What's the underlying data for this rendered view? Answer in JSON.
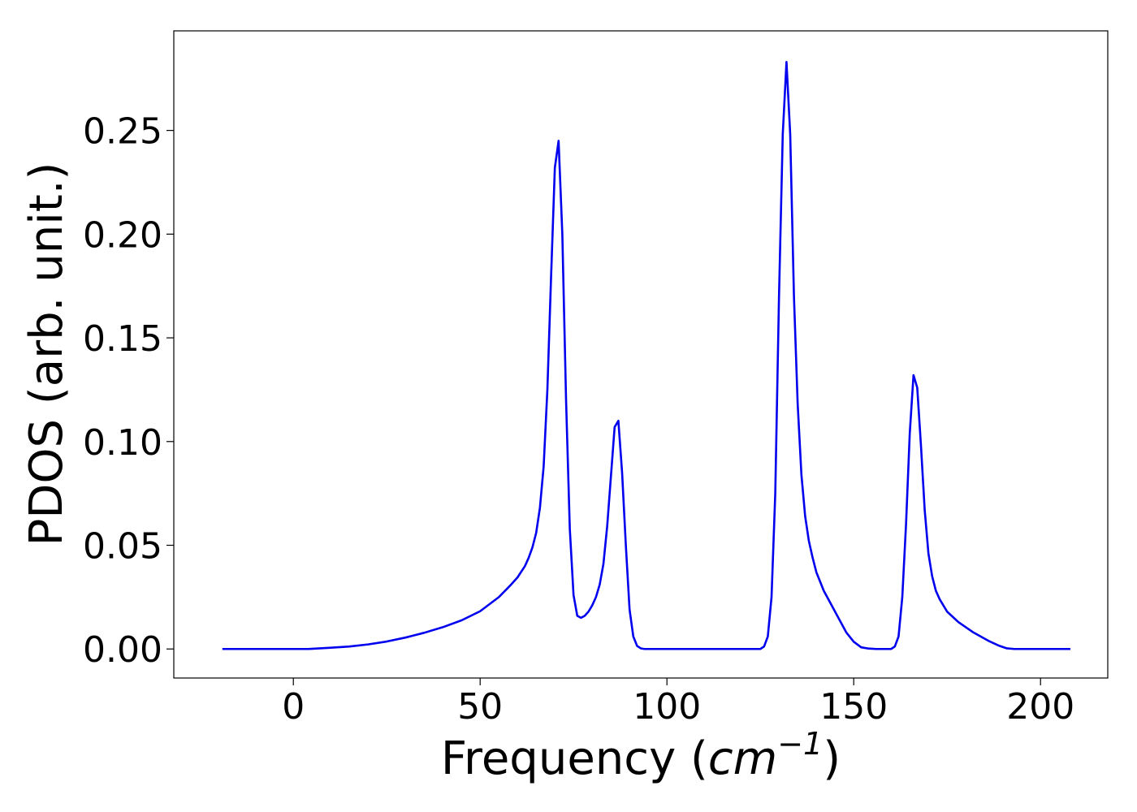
{
  "chart_data": {
    "type": "line",
    "title": "",
    "xlabel_main": "Frequency (",
    "xlabel_unit": "cm",
    "xlabel_exp": "−1",
    "xlabel_close": ")",
    "ylabel": "PDOS (arb. unit.)",
    "xlim": [
      -32,
      218
    ],
    "ylim": [
      -0.014,
      0.298
    ],
    "x_ticks": [
      0,
      50,
      100,
      150,
      200
    ],
    "x_tick_labels": [
      "0",
      "50",
      "100",
      "150",
      "200"
    ],
    "y_ticks": [
      0,
      0.05,
      0.1,
      0.15,
      0.2,
      0.25
    ],
    "y_tick_labels": [
      "0.00",
      "0.05",
      "0.10",
      "0.15",
      "0.20",
      "0.25"
    ],
    "grid": false,
    "legend": "none",
    "series": [
      {
        "color": "#0000ee",
        "x": [
          -19,
          0,
          4,
          10,
          15,
          20,
          25,
          30,
          35,
          40,
          45,
          50,
          55,
          58,
          60,
          62,
          63,
          64,
          65,
          66,
          67,
          68,
          69,
          70,
          71,
          72,
          73,
          74,
          75,
          76,
          77,
          78,
          79,
          80,
          81,
          82,
          83,
          84,
          85,
          86,
          87,
          88,
          89,
          90,
          91,
          92,
          93,
          94,
          95,
          96,
          100,
          110,
          120,
          125,
          126,
          127,
          128,
          129,
          130,
          131,
          132,
          133,
          134,
          135,
          136,
          137,
          138,
          139,
          140,
          142,
          145,
          148,
          150,
          152,
          154,
          156,
          158,
          160,
          161,
          162,
          163,
          164,
          165,
          166,
          167,
          168,
          169,
          170,
          171,
          172,
          173,
          175,
          178,
          182,
          186,
          189,
          191,
          193,
          195,
          200,
          208
        ],
        "y": [
          0,
          0,
          0,
          0.0006,
          0.0012,
          0.0022,
          0.0036,
          0.0055,
          0.0078,
          0.0105,
          0.0138,
          0.0182,
          0.025,
          0.0305,
          0.0345,
          0.04,
          0.044,
          0.049,
          0.056,
          0.068,
          0.088,
          0.125,
          0.18,
          0.232,
          0.245,
          0.2,
          0.12,
          0.058,
          0.026,
          0.016,
          0.015,
          0.016,
          0.018,
          0.021,
          0.025,
          0.031,
          0.041,
          0.059,
          0.083,
          0.107,
          0.11,
          0.085,
          0.05,
          0.019,
          0.006,
          0.0015,
          0.0003,
          0,
          0,
          0,
          0,
          0,
          0,
          0,
          0.0012,
          0.006,
          0.025,
          0.075,
          0.17,
          0.248,
          0.283,
          0.248,
          0.17,
          0.118,
          0.084,
          0.064,
          0.052,
          0.044,
          0.037,
          0.028,
          0.018,
          0.008,
          0.0035,
          0.0008,
          0.0002,
          0,
          0,
          0,
          0.0012,
          0.006,
          0.025,
          0.06,
          0.104,
          0.132,
          0.126,
          0.098,
          0.067,
          0.046,
          0.035,
          0.028,
          0.024,
          0.018,
          0.013,
          0.008,
          0.004,
          0.0015,
          0.0003,
          0,
          0,
          0,
          0
        ]
      }
    ]
  }
}
